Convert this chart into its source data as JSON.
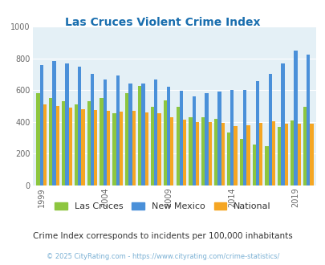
{
  "title": "Las Cruces Violent Crime Index",
  "title_color": "#1a6faf",
  "subtitle": "Crime Index corresponds to incidents per 100,000 inhabitants",
  "footer": "© 2025 CityRating.com - https://www.cityrating.com/crime-statistics/",
  "years": [
    1999,
    2000,
    2001,
    2002,
    2003,
    2004,
    2005,
    2006,
    2007,
    2008,
    2009,
    2010,
    2011,
    2012,
    2013,
    2014,
    2015,
    2016,
    2017,
    2018,
    2019,
    2020
  ],
  "x_ticks_years": [
    1999,
    2004,
    2009,
    2014,
    2019
  ],
  "las_cruces": [
    580,
    550,
    530,
    510,
    530,
    550,
    455,
    580,
    625,
    495,
    535,
    495,
    430,
    430,
    420,
    335,
    295,
    260,
    245,
    370,
    410,
    495
  ],
  "new_mexico": [
    760,
    785,
    770,
    750,
    700,
    665,
    690,
    640,
    640,
    665,
    620,
    595,
    560,
    580,
    590,
    600,
    600,
    655,
    700,
    770,
    850,
    825
  ],
  "national": [
    510,
    500,
    490,
    480,
    475,
    470,
    465,
    470,
    460,
    455,
    430,
    415,
    400,
    400,
    395,
    375,
    380,
    395,
    405,
    390,
    390,
    390
  ],
  "bar_colors": {
    "las_cruces": "#8dc63f",
    "new_mexico": "#4a90d9",
    "national": "#f5a623"
  },
  "bg_color": "#e4f0f6",
  "ylim": [
    0,
    1000
  ],
  "yticks": [
    0,
    200,
    400,
    600,
    800,
    1000
  ],
  "bar_width": 0.27,
  "legend_labels": [
    "Las Cruces",
    "New Mexico",
    "National"
  ],
  "subtitle_color": "#333333",
  "footer_color": "#7ab0d4",
  "figsize": [
    4.06,
    3.3
  ],
  "dpi": 100
}
